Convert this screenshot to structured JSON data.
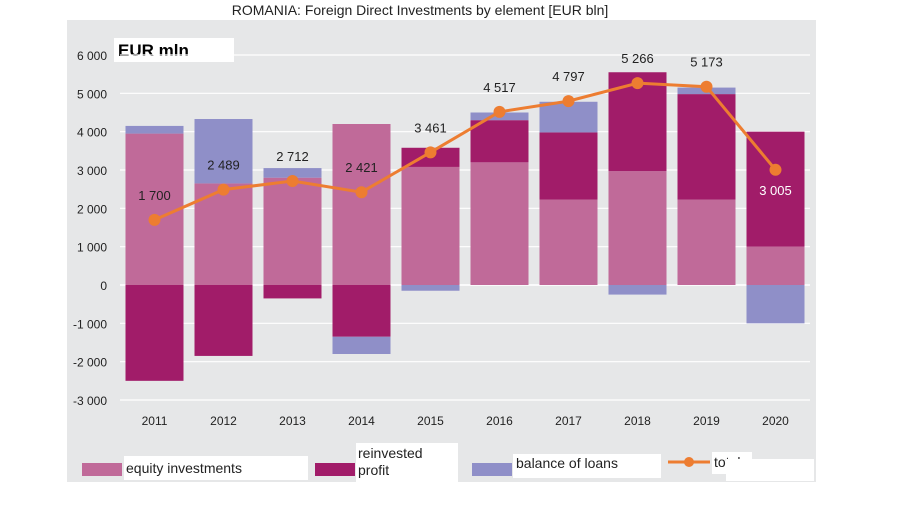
{
  "chart_data": {
    "type": "bar",
    "title": "ROMANIA: Foreign Direct Investments by element [EUR bln]",
    "unit_label": "EUR mln",
    "categories": [
      "2011",
      "2012",
      "2013",
      "2014",
      "2015",
      "2016",
      "2017",
      "2018",
      "2019",
      "2020"
    ],
    "series": [
      {
        "name": "equity investments",
        "color": "#c06a99",
        "values": [
          3950,
          2650,
          2800,
          4200,
          3080,
          3200,
          2230,
          2970,
          2230,
          1000
        ]
      },
      {
        "name": "reinvested profit",
        "color": "#a11c69",
        "values": [
          -2500,
          -1850,
          -350,
          -1350,
          500,
          1100,
          1750,
          2580,
          2750,
          3000
        ]
      },
      {
        "name": "balance of loans",
        "color": "#8f8fc8",
        "values": [
          200,
          1680,
          250,
          -450,
          -150,
          200,
          800,
          -250,
          170,
          -1000
        ]
      }
    ],
    "line": {
      "name": "total",
      "color": "#ed7d31",
      "values": [
        1700,
        2489,
        2712,
        2421,
        3461,
        4517,
        4797,
        5266,
        5173,
        3005
      ],
      "labels": [
        "1 700",
        "2 489",
        "2 712",
        "2 421",
        "3 461",
        "4 517",
        "4 797",
        "5 266",
        "5 173",
        "3 005"
      ]
    },
    "ylim": [
      -3000,
      6000
    ],
    "yticks": [
      -3000,
      -2000,
      -1000,
      0,
      1000,
      2000,
      3000,
      4000,
      5000,
      6000
    ],
    "ytick_labels": [
      "-3 000",
      "-2 000",
      "-1 000",
      "0",
      "1 000",
      "2 000",
      "3 000",
      "4 000",
      "5 000",
      "6 000"
    ],
    "grid": true,
    "legend_position": "bottom"
  }
}
